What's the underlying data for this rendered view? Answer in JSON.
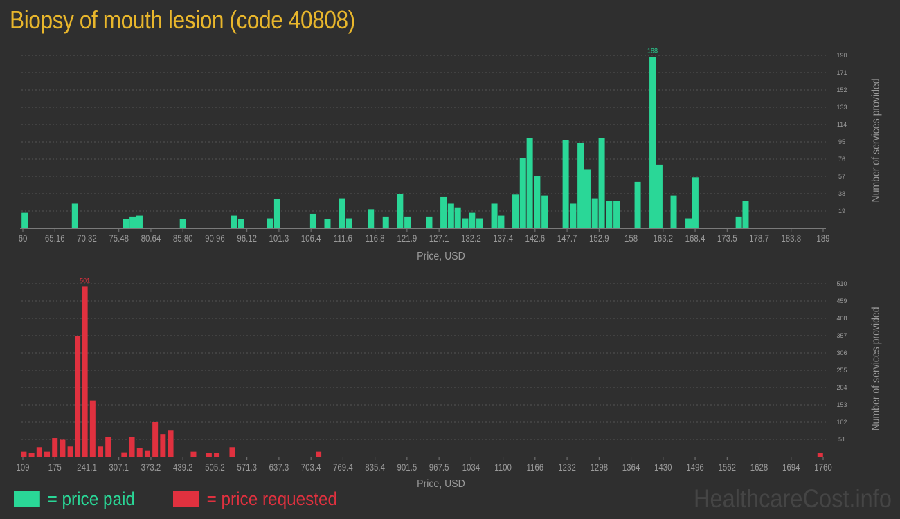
{
  "title": "Biopsy of mouth lesion (code 40808)",
  "colors": {
    "title": "#e8b62c",
    "paid": "#2ad797",
    "requested": "#e0313f",
    "text": "#9a9a9a",
    "grid": "#555555",
    "axis": "#7a7a7a",
    "watermark": "#454545"
  },
  "legend": {
    "paid_label": "= price paid",
    "requested_label": "= price requested"
  },
  "watermark": "HealthcareCost.info",
  "chart_data": [
    {
      "type": "bar",
      "name": "price paid",
      "xlabel": "Price, USD",
      "ylabel": "Number of services provided",
      "xlim": [
        60,
        189
      ],
      "ylim": [
        0,
        190
      ],
      "grid": true,
      "x_ticks": [
        "60",
        "65.16",
        "70.32",
        "75.48",
        "80.64",
        "85.80",
        "90.96",
        "96.12",
        "101.3",
        "106.4",
        "111.6",
        "116.8",
        "121.9",
        "127.1",
        "132.2",
        "137.4",
        "142.6",
        "147.7",
        "152.9",
        "158",
        "163.2",
        "168.4",
        "173.5",
        "178.7",
        "183.8",
        "189"
      ],
      "y_ticks": [
        19,
        38,
        57,
        76,
        95,
        114,
        133,
        152,
        171,
        190
      ],
      "max_label": "188",
      "bars": [
        {
          "x": 60.3,
          "y": 17
        },
        {
          "x": 68.4,
          "y": 27
        },
        {
          "x": 76.6,
          "y": 10
        },
        {
          "x": 77.7,
          "y": 13
        },
        {
          "x": 78.8,
          "y": 14
        },
        {
          "x": 85.8,
          "y": 10
        },
        {
          "x": 94.0,
          "y": 14
        },
        {
          "x": 95.2,
          "y": 10
        },
        {
          "x": 99.8,
          "y": 11
        },
        {
          "x": 101.0,
          "y": 32
        },
        {
          "x": 106.8,
          "y": 16
        },
        {
          "x": 109.1,
          "y": 10
        },
        {
          "x": 111.5,
          "y": 33
        },
        {
          "x": 112.6,
          "y": 11
        },
        {
          "x": 116.1,
          "y": 21
        },
        {
          "x": 118.5,
          "y": 13
        },
        {
          "x": 120.8,
          "y": 38
        },
        {
          "x": 122.0,
          "y": 13
        },
        {
          "x": 125.5,
          "y": 13
        },
        {
          "x": 127.8,
          "y": 35
        },
        {
          "x": 129.0,
          "y": 27
        },
        {
          "x": 130.1,
          "y": 23
        },
        {
          "x": 131.3,
          "y": 11
        },
        {
          "x": 132.4,
          "y": 17
        },
        {
          "x": 133.6,
          "y": 11
        },
        {
          "x": 136.0,
          "y": 27
        },
        {
          "x": 137.1,
          "y": 14
        },
        {
          "x": 139.4,
          "y": 37
        },
        {
          "x": 140.6,
          "y": 77
        },
        {
          "x": 141.7,
          "y": 99
        },
        {
          "x": 142.9,
          "y": 57
        },
        {
          "x": 144.1,
          "y": 36
        },
        {
          "x": 147.5,
          "y": 97
        },
        {
          "x": 148.7,
          "y": 27
        },
        {
          "x": 149.9,
          "y": 94
        },
        {
          "x": 151.0,
          "y": 65
        },
        {
          "x": 152.2,
          "y": 33
        },
        {
          "x": 153.3,
          "y": 99
        },
        {
          "x": 154.5,
          "y": 30
        },
        {
          "x": 155.7,
          "y": 30
        },
        {
          "x": 159.1,
          "y": 51
        },
        {
          "x": 161.5,
          "y": 188
        },
        {
          "x": 162.6,
          "y": 70
        },
        {
          "x": 164.9,
          "y": 36
        },
        {
          "x": 167.3,
          "y": 11
        },
        {
          "x": 168.4,
          "y": 56
        },
        {
          "x": 175.4,
          "y": 13
        },
        {
          "x": 176.5,
          "y": 30
        }
      ]
    },
    {
      "type": "bar",
      "name": "price requested",
      "xlabel": "Price, USD",
      "ylabel": "Number of services provided",
      "xlim": [
        109,
        1760
      ],
      "ylim": [
        0,
        510
      ],
      "grid": true,
      "x_ticks": [
        "109",
        "175",
        "241.1",
        "307.1",
        "373.2",
        "439.2",
        "505.2",
        "571.3",
        "637.3",
        "703.4",
        "769.4",
        "835.4",
        "901.5",
        "967.5",
        "1034",
        "1100",
        "1166",
        "1232",
        "1298",
        "1364",
        "1430",
        "1496",
        "1562",
        "1628",
        "1694",
        "1760"
      ],
      "y_ticks": [
        51,
        102,
        153,
        204,
        255,
        306,
        357,
        408,
        459,
        510
      ],
      "max_label": "501",
      "bars": [
        {
          "x": 111,
          "y": 15
        },
        {
          "x": 127,
          "y": 12
        },
        {
          "x": 143,
          "y": 28
        },
        {
          "x": 159,
          "y": 15
        },
        {
          "x": 175,
          "y": 55
        },
        {
          "x": 191,
          "y": 50
        },
        {
          "x": 207,
          "y": 30
        },
        {
          "x": 222,
          "y": 357
        },
        {
          "x": 237,
          "y": 501
        },
        {
          "x": 253,
          "y": 166
        },
        {
          "x": 269,
          "y": 30
        },
        {
          "x": 285,
          "y": 58
        },
        {
          "x": 318,
          "y": 13
        },
        {
          "x": 334,
          "y": 58
        },
        {
          "x": 350,
          "y": 25
        },
        {
          "x": 366,
          "y": 17
        },
        {
          "x": 382,
          "y": 102
        },
        {
          "x": 398,
          "y": 67
        },
        {
          "x": 414,
          "y": 77
        },
        {
          "x": 461,
          "y": 15
        },
        {
          "x": 493,
          "y": 12
        },
        {
          "x": 509,
          "y": 12
        },
        {
          "x": 541,
          "y": 28
        },
        {
          "x": 719,
          "y": 15
        },
        {
          "x": 1754,
          "y": 12
        }
      ]
    }
  ]
}
